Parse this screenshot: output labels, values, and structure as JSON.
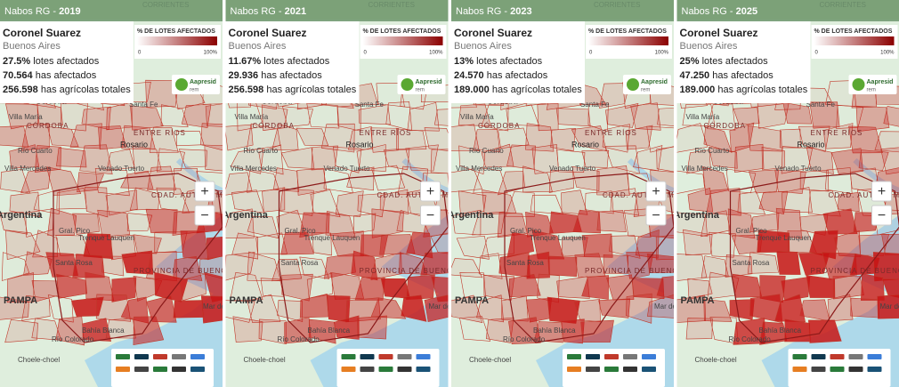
{
  "panels": [
    {
      "header": {
        "prefix": "Nabos RG - ",
        "year": "2019"
      },
      "location": "Coronel Suarez",
      "province": "Buenos Aires",
      "stats": [
        {
          "value": "27.5%",
          "label": "lotes afectados"
        },
        {
          "value": "70.564",
          "label": "has afectados"
        },
        {
          "value": "256.598",
          "label": "has agrícolas totales"
        }
      ]
    },
    {
      "header": {
        "prefix": "Nabos RG - ",
        "year": "2021"
      },
      "location": "Coronel Suarez",
      "province": "Buenos Aires",
      "stats": [
        {
          "value": "11.67%",
          "label": "lotes afectados"
        },
        {
          "value": "29.936",
          "label": "has afectados"
        },
        {
          "value": "256.598",
          "label": "has agrícolas totales"
        }
      ]
    },
    {
      "header": {
        "prefix": "Nabos RG - ",
        "year": "2023"
      },
      "location": "Coronel Suarez",
      "province": "Buenos Aires",
      "stats": [
        {
          "value": "13%",
          "label": "lotes afectados"
        },
        {
          "value": "24.570",
          "label": "has afectados"
        },
        {
          "value": "189.000",
          "label": "has agrícolas totales"
        }
      ]
    },
    {
      "header": {
        "prefix": "Nabos RG - ",
        "year": "2025"
      },
      "location": "Coronel Suarez",
      "province": "Buenos Aires",
      "stats": [
        {
          "value": "25%",
          "label": "lotes afectados"
        },
        {
          "value": "47.250",
          "label": "has afectados"
        },
        {
          "value": "189.000",
          "label": "has agrícolas totales"
        }
      ]
    }
  ],
  "legend": {
    "title": "% DE LOTES AFECTADOS",
    "min": "0",
    "max": "100%"
  },
  "logo": {
    "name": "Aapresid",
    "sub": "rem"
  },
  "zoom": {
    "in": "+",
    "out": "−"
  },
  "map_labels": [
    "CORRIENTES",
    "Córdoba",
    "CÓRDOBA",
    "ENTRE RÍOS",
    "Santa Fe",
    "Rosario",
    "Villa María",
    "Río Cuarto",
    "Villa Mercedes",
    "Venado Tuerto",
    "CDAD. AUTÓNOMA BUENOS AIRES",
    "Argentina",
    "Gral. Pico",
    "Trenque Lauquen",
    "Santa Rosa",
    "PROVINCIA DE BUENOS AIRES",
    "PAMPA",
    "Mar del Plata",
    "Bahía Blanca",
    "Río Colorado",
    "Choele-choel"
  ]
}
